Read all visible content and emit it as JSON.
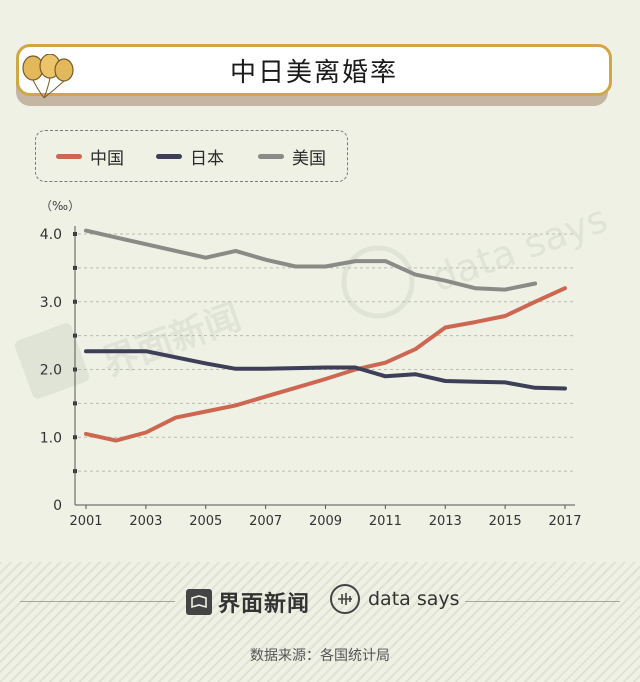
{
  "chart_data": {
    "type": "line",
    "title": "中日美离婚率",
    "ylabel": "（‰）",
    "xlabel": "",
    "ylim": [
      0,
      4.3
    ],
    "yticks": [
      0,
      1.0,
      2.0,
      3.0,
      4.0
    ],
    "ytick_labels": [
      "0",
      "1.0",
      "2.0",
      "3.0",
      "4.0"
    ],
    "xlim": [
      2001,
      2017
    ],
    "xticks": [
      2001,
      2003,
      2005,
      2007,
      2009,
      2011,
      2013,
      2015,
      2017
    ],
    "xtick_labels": [
      "2001",
      "2003",
      "2005",
      "2007",
      "2009",
      "2011",
      "2013",
      "2015",
      "2017"
    ],
    "grid": true,
    "legend_position": "top-left",
    "series": [
      {
        "name": "中国",
        "color": "#cd6751",
        "x": [
          2001,
          2002,
          2003,
          2004,
          2005,
          2006,
          2007,
          2008,
          2009,
          2010,
          2011,
          2012,
          2013,
          2014,
          2015,
          2016,
          2017
        ],
        "values": [
          1.05,
          0.95,
          1.07,
          1.29,
          1.38,
          1.47,
          1.6,
          1.73,
          1.86,
          2.0,
          2.1,
          2.3,
          2.62,
          2.7,
          2.79,
          3.0,
          3.2
        ]
      },
      {
        "name": "日本",
        "color": "#3d3f58",
        "x": [
          2001,
          2002,
          2003,
          2004,
          2005,
          2006,
          2007,
          2008,
          2009,
          2010,
          2011,
          2012,
          2013,
          2014,
          2015,
          2016,
          2017
        ],
        "values": [
          2.27,
          2.27,
          2.27,
          2.18,
          2.09,
          2.01,
          2.01,
          2.02,
          2.03,
          2.03,
          1.9,
          1.93,
          1.83,
          1.82,
          1.81,
          1.73,
          1.72
        ]
      },
      {
        "name": "美国",
        "color": "#8a8a86",
        "x": [
          2001,
          2002,
          2003,
          2004,
          2005,
          2006,
          2007,
          2008,
          2009,
          2010,
          2011,
          2012,
          2013,
          2014,
          2015,
          2016
        ],
        "values": [
          4.05,
          3.95,
          3.85,
          3.75,
          3.65,
          3.75,
          3.62,
          3.52,
          3.52,
          3.6,
          3.6,
          3.4,
          3.31,
          3.2,
          3.18,
          3.27
        ]
      }
    ]
  },
  "brand": {
    "jiemian": "界面新闻",
    "datasays": "data says"
  },
  "footer": {
    "source": "数据来源：各国统计局"
  },
  "colors": {
    "background": "#eef1e4",
    "title_border": "#d1a744",
    "balloon": "#e2b85a"
  }
}
